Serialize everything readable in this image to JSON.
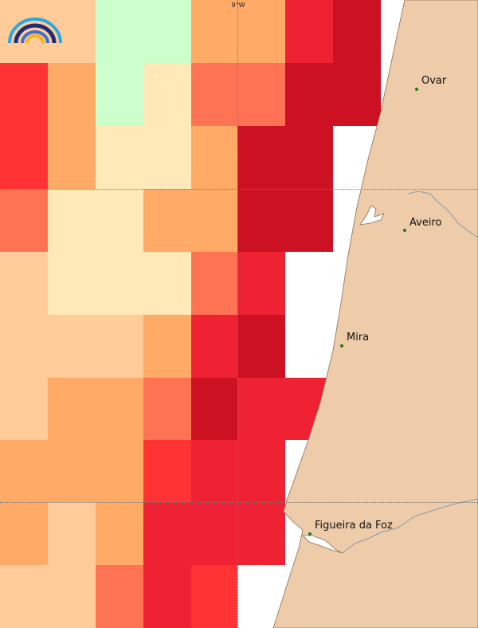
{
  "map": {
    "title": "",
    "longitude_label": "9°W",
    "colors": {
      "light_peach": "#ffcc99",
      "peach": "#ffaa66",
      "cream": "#ffe9b9",
      "light_green": "#ccffcc",
      "coral": "#ff7355",
      "red": "#ff3333",
      "crimson": "#ee2233",
      "dark_red": "#cc1122",
      "land": "#eeccaa",
      "sea": "#ffffff"
    },
    "grid_rows": [
      [
        "light_peach",
        "light_peach",
        "light_green",
        "light_green",
        "peach",
        "peach",
        "crimson",
        "dark_red"
      ],
      [
        "red",
        "peach",
        "light_green",
        "cream",
        "coral",
        "coral",
        "dark_red",
        "dark_red"
      ],
      [
        "red",
        "peach",
        "cream",
        "cream",
        "peach",
        "dark_red",
        "dark_red",
        "sea"
      ],
      [
        "coral",
        "cream",
        "cream",
        "peach",
        "peach",
        "dark_red",
        "dark_red",
        "sea"
      ],
      [
        "light_peach",
        "cream",
        "cream",
        "cream",
        "coral",
        "crimson",
        "sea",
        "sea"
      ],
      [
        "light_peach",
        "light_peach",
        "light_peach",
        "peach",
        "crimson",
        "dark_red",
        "sea",
        "sea"
      ],
      [
        "light_peach",
        "peach",
        "peach",
        "coral",
        "dark_red",
        "crimson",
        "crimson",
        "sea"
      ],
      [
        "peach",
        "peach",
        "peach",
        "red",
        "crimson",
        "crimson",
        "sea",
        "sea"
      ],
      [
        "peach",
        "light_peach",
        "peach",
        "crimson",
        "crimson",
        "crimson",
        "sea",
        "sea"
      ],
      [
        "light_peach",
        "light_peach",
        "coral",
        "crimson",
        "red",
        "sea",
        "sea",
        "sea"
      ]
    ],
    "cities": [
      {
        "name": "Ovar",
        "lon": -8.625,
        "lat": 40.86
      },
      {
        "name": "Aveiro",
        "lon": -8.65,
        "lat": 40.64
      },
      {
        "name": "Mira",
        "lon": -8.74,
        "lat": 40.43
      },
      {
        "name": "Figueira da Foz",
        "lon": -8.86,
        "lat": 40.15
      }
    ]
  },
  "logo": {
    "icon": "rainbow-logo-icon"
  }
}
